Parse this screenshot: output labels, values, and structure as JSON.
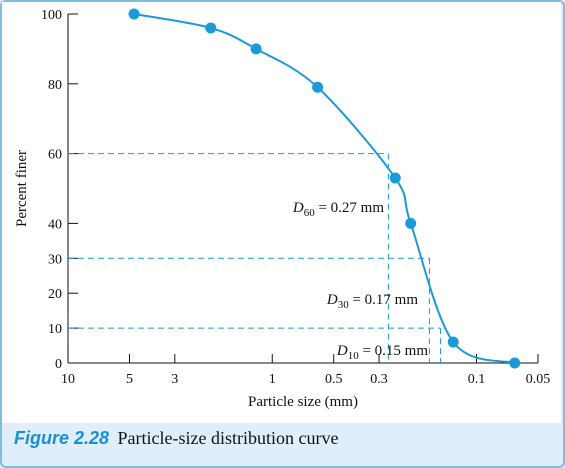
{
  "caption": {
    "label": "Figure 2.28",
    "text": "Particle-size distribution curve"
  },
  "colors": {
    "curve": "#1b9ad7",
    "marker": "#1b9ad7",
    "reference": "#1b9ad7",
    "axis": "#111111",
    "caption_label": "#1a8fd3",
    "background": "#dfeef8"
  },
  "chart_data": {
    "type": "scatter",
    "title": "",
    "xlabel": "Particle size (mm)",
    "ylabel": "Percent finer",
    "x_scale": "log",
    "x_reversed": true,
    "xlim": [
      10,
      0.05
    ],
    "ylim": [
      0,
      100
    ],
    "x_ticks": [
      10,
      5,
      3,
      1,
      0.5,
      0.3,
      0.1,
      0.05
    ],
    "x_tick_labels": [
      "10",
      "5",
      "3",
      "1",
      "0.5",
      "0.3",
      "0.1",
      "0.05"
    ],
    "y_ticks": [
      0,
      10,
      20,
      30,
      40,
      60,
      80,
      100
    ],
    "y_tick_labels": [
      "0",
      "10",
      "20",
      "30",
      "40",
      "60",
      "80",
      "100"
    ],
    "grid": false,
    "series": [
      {
        "points": [
          {
            "x": 4.75,
            "y": 100
          },
          {
            "x": 2.0,
            "y": 96
          },
          {
            "x": 1.2,
            "y": 90
          },
          {
            "x": 0.6,
            "y": 79
          },
          {
            "x": 0.25,
            "y": 53
          },
          {
            "x": 0.21,
            "y": 40
          },
          {
            "x": 0.13,
            "y": 6
          },
          {
            "x": 0.065,
            "y": 0
          }
        ]
      }
    ],
    "reference_lines": [
      {
        "percent": 60,
        "diameter": 0.27,
        "label_main": "D",
        "label_sub": "60",
        "label_rest": " = 0.27 mm"
      },
      {
        "percent": 30,
        "diameter": 0.17,
        "label_main": "D",
        "label_sub": "30",
        "label_rest": " = 0.17 mm"
      },
      {
        "percent": 10,
        "diameter": 0.15,
        "label_main": "D",
        "label_sub": "10",
        "label_rest": " = 0.15 mm"
      }
    ]
  }
}
